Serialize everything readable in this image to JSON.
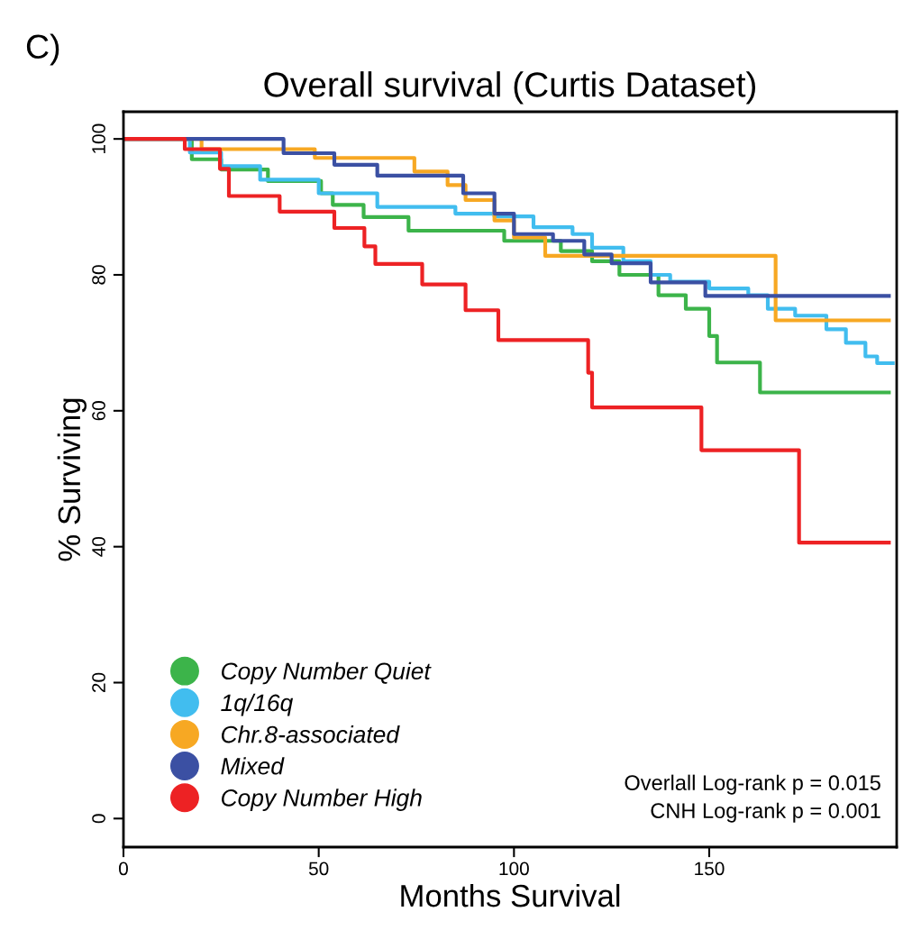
{
  "chart_data": {
    "type": "step",
    "title": "Overall survival (Curtis Dataset)",
    "xlabel": "Months Survival",
    "ylabel": "% Surviving",
    "xlim": [
      0,
      198
    ],
    "ylim": [
      -4.2,
      104
    ],
    "xticks": [
      0,
      50,
      100,
      150
    ],
    "yticks": [
      0,
      20,
      40,
      60,
      80,
      100
    ],
    "grid": false,
    "legend": "bottom left",
    "line_style": "solid",
    "marker": "none",
    "series": [
      {
        "name": "Copy Number Quiet",
        "color": "#3cb44a",
        "x": [
          0,
          17.5,
          25,
          37,
          50.6,
          53.6,
          61.5,
          73,
          97.5,
          112,
          120,
          127,
          137,
          144,
          150,
          152,
          163,
          196
        ],
        "values": [
          100,
          97.0,
          95.5,
          93.8,
          92.0,
          90.3,
          88.5,
          86.5,
          85,
          83.5,
          82,
          80,
          77,
          75,
          71,
          67.1,
          62.7,
          62.7
        ]
      },
      {
        "name": "1q/16q",
        "color": "#41bdef",
        "x": [
          0,
          17,
          25,
          35,
          50,
          65,
          85,
          95,
          105,
          115,
          120,
          128,
          135,
          140,
          150,
          160,
          165,
          172,
          180,
          185,
          190,
          193,
          197
        ],
        "values": [
          100,
          98,
          96,
          94,
          92,
          90,
          89,
          88.6,
          87,
          86,
          84,
          82,
          80,
          79,
          78,
          77,
          75,
          74,
          72,
          70,
          68,
          67,
          67
        ]
      },
      {
        "name": "Chr.8-associated",
        "color": "#f7a823",
        "x": [
          0,
          20,
          49,
          74.5,
          83,
          87.6,
          95,
          100,
          108,
          167,
          196
        ],
        "values": [
          100,
          98.5,
          97.2,
          95.2,
          93.2,
          91,
          88,
          85.5,
          82.8,
          73.3,
          73.3
        ]
      },
      {
        "name": "Mixed",
        "color": "#3b50a3",
        "x": [
          0,
          41,
          54,
          65,
          87,
          95,
          100,
          110,
          118,
          125,
          135,
          149,
          196
        ],
        "values": [
          100,
          97.9,
          96.2,
          94.6,
          92,
          89,
          86,
          85,
          83,
          81.7,
          78.9,
          76.9,
          76.9
        ]
      },
      {
        "name": "Copy Number High",
        "color": "#ed2224",
        "x": [
          0,
          15.7,
          24.7,
          27,
          40,
          54,
          61.7,
          64.5,
          76.5,
          87.6,
          96,
          119,
          120,
          148,
          173,
          196
        ],
        "values": [
          100,
          98.5,
          95.6,
          91.6,
          89.3,
          86.9,
          84.2,
          81.6,
          78.6,
          74.8,
          70.4,
          65.6,
          60.5,
          54.2,
          40.6,
          40.6
        ]
      }
    ],
    "annotations": [
      "C)",
      "Overlall Log-rank p = 0.015",
      "CNH Log-rank p = 0.001"
    ]
  }
}
